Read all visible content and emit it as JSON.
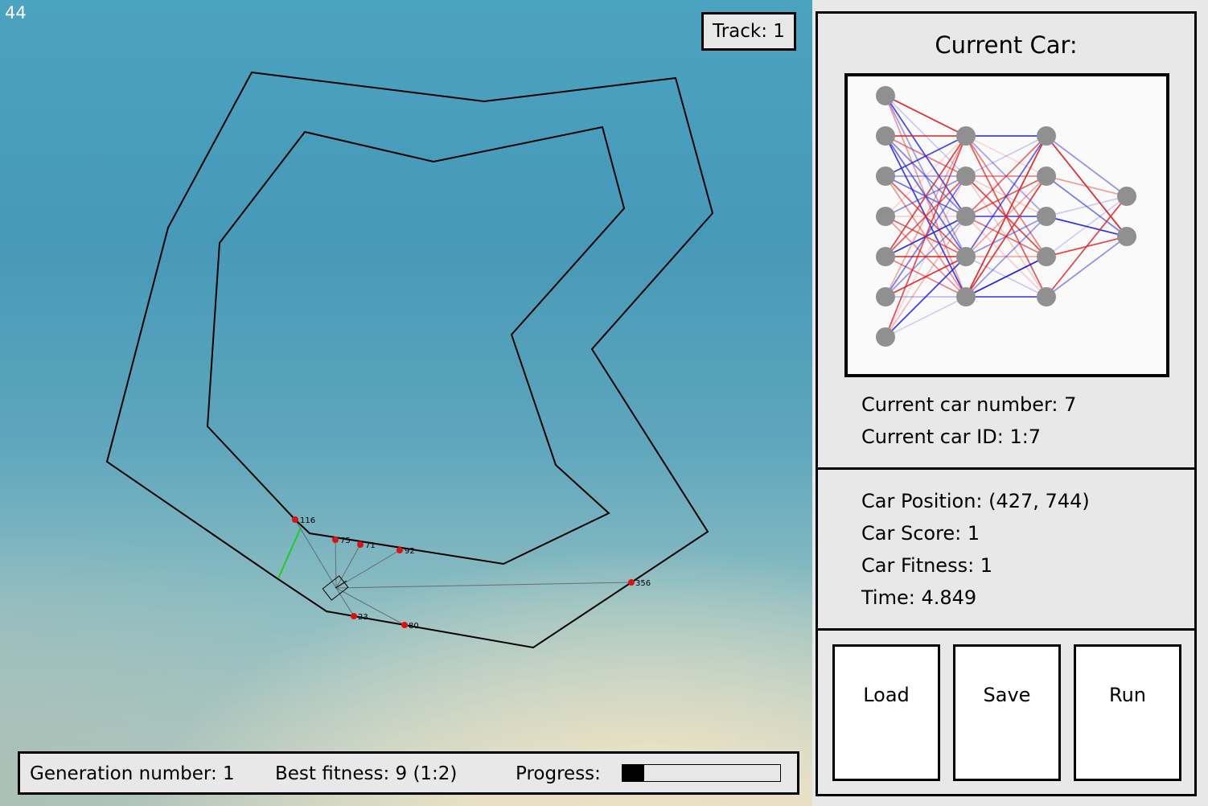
{
  "fps": "44",
  "track": {
    "label": "Track: 1"
  },
  "status": {
    "generation": "Generation number: 1",
    "best_fitness": "Best fitness: 9 (1:2)",
    "progress_label": "Progress:",
    "progress_fraction": 0.14
  },
  "sensors": [
    "116",
    "75",
    "71",
    "92",
    "356",
    "23",
    "80"
  ],
  "panel": {
    "title": "Current Car:",
    "car_number": "Current car number: 7",
    "car_id": "Current car ID: 1:7",
    "car_position": "Car Position: (427, 744)",
    "car_score": "Car Score: 1",
    "car_fitness": "Car Fitness: 1",
    "time": "Time: 4.849",
    "buttons": {
      "load": "Load",
      "save": "Save",
      "run": "Run"
    }
  },
  "network": {
    "layers": [
      7,
      5,
      5,
      2
    ],
    "colors": {
      "positive": "#2020e0",
      "negative": "#e02020",
      "node": "#909090"
    }
  }
}
